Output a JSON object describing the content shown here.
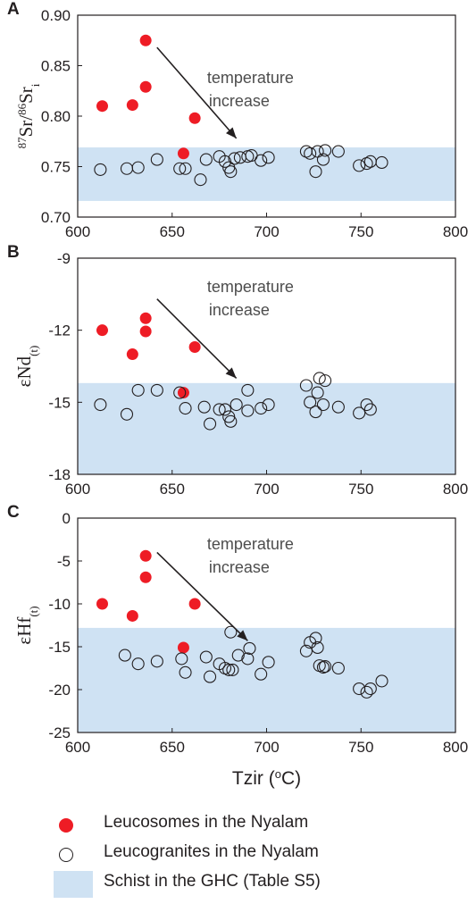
{
  "chart_data": [
    {
      "type": "scatter",
      "panel": "A",
      "ylabel_parts": [
        "87",
        "Sr/",
        "86",
        "Sr",
        "i"
      ],
      "xlim": [
        600,
        800
      ],
      "ylim": [
        0.7,
        0.9
      ],
      "xticks": [
        "600",
        "650",
        "700",
        "750",
        "800"
      ],
      "yticks": [
        "0.70",
        "0.75",
        "0.80",
        "0.85",
        "0.90"
      ],
      "ytick_values": [
        0.7,
        0.75,
        0.8,
        0.85,
        0.9
      ],
      "band": [
        0.716,
        0.769
      ],
      "annotation": [
        "temperature",
        "increase"
      ],
      "arrow": {
        "from": [
          642,
          0.868
        ],
        "to": [
          684,
          0.778
        ]
      },
      "series": [
        {
          "name": "Leucosomes in the Nyalam",
          "points": [
            [
              613,
              0.81
            ],
            [
              629,
              0.811
            ],
            [
              636,
              0.875
            ],
            [
              636,
              0.829
            ],
            [
              656,
              0.763
            ],
            [
              662,
              0.798
            ]
          ]
        },
        {
          "name": "Leucogranites in the Nyalam",
          "points": [
            [
              612,
              0.747
            ],
            [
              626,
              0.748
            ],
            [
              632,
              0.749
            ],
            [
              642,
              0.757
            ],
            [
              654,
              0.748
            ],
            [
              657,
              0.748
            ],
            [
              665,
              0.737
            ],
            [
              668,
              0.757
            ],
            [
              675,
              0.76
            ],
            [
              678,
              0.755
            ],
            [
              680,
              0.749
            ],
            [
              681,
              0.745
            ],
            [
              683,
              0.758
            ],
            [
              686,
              0.759
            ],
            [
              690,
              0.76
            ],
            [
              692,
              0.761
            ],
            [
              697,
              0.756
            ],
            [
              701,
              0.759
            ],
            [
              721,
              0.765
            ],
            [
              723,
              0.763
            ],
            [
              726,
              0.745
            ],
            [
              727,
              0.765
            ],
            [
              730,
              0.757
            ],
            [
              731,
              0.766
            ],
            [
              738,
              0.765
            ],
            [
              749,
              0.751
            ],
            [
              753,
              0.753
            ],
            [
              755,
              0.755
            ],
            [
              761,
              0.754
            ]
          ]
        }
      ]
    },
    {
      "type": "scatter",
      "panel": "B",
      "ylabel_parts": [
        "εNd",
        "(t)"
      ],
      "xlim": [
        600,
        800
      ],
      "ylim": [
        -18,
        -9
      ],
      "xticks": [
        "600",
        "650",
        "700",
        "750",
        "800"
      ],
      "yticks": [
        "-18",
        "-15",
        "-12",
        "-9"
      ],
      "ytick_values": [
        -18,
        -15,
        -12,
        -9
      ],
      "band": [
        -18,
        -14.2
      ],
      "annotation": [
        "temperature",
        "increase"
      ],
      "arrow": {
        "from": [
          642,
          -10.7
        ],
        "to": [
          684,
          -14.0
        ]
      },
      "series": [
        {
          "name": "Leucosomes in the Nyalam",
          "points": [
            [
              613,
              -12.0
            ],
            [
              629,
              -13.0
            ],
            [
              636,
              -11.5
            ],
            [
              636,
              -12.05
            ],
            [
              656,
              -14.6
            ],
            [
              662,
              -12.7
            ]
          ]
        },
        {
          "name": "Leucogranites in the Nyalam",
          "points": [
            [
              612,
              -15.1
            ],
            [
              626,
              -15.5
            ],
            [
              632,
              -14.5
            ],
            [
              642,
              -14.5
            ],
            [
              654,
              -14.6
            ],
            [
              657,
              -15.25
            ],
            [
              667,
              -15.2
            ],
            [
              670,
              -15.9
            ],
            [
              675,
              -15.3
            ],
            [
              678,
              -15.3
            ],
            [
              680,
              -15.6
            ],
            [
              681,
              -15.8
            ],
            [
              684,
              -15.1
            ],
            [
              690,
              -14.5
            ],
            [
              690,
              -15.35
            ],
            [
              697,
              -15.25
            ],
            [
              701,
              -15.1
            ],
            [
              721,
              -14.3
            ],
            [
              723,
              -15.0
            ],
            [
              726,
              -15.4
            ],
            [
              727,
              -14.6
            ],
            [
              728,
              -14.0
            ],
            [
              730,
              -15.1
            ],
            [
              731,
              -14.1
            ],
            [
              738,
              -15.2
            ],
            [
              749,
              -15.45
            ],
            [
              753,
              -15.1
            ],
            [
              755,
              -15.3
            ]
          ]
        }
      ]
    },
    {
      "type": "scatter",
      "panel": "C",
      "ylabel_parts": [
        "εHf",
        "(t)"
      ],
      "xlabel_parts": [
        "Tzir (",
        "o",
        "C)"
      ],
      "xlim": [
        600,
        800
      ],
      "ylim": [
        -25,
        0
      ],
      "xticks": [
        "600",
        "650",
        "700",
        "750",
        "800"
      ],
      "yticks": [
        "-25",
        "-20",
        "-15",
        "-10",
        "-5",
        "0"
      ],
      "ytick_values": [
        -25,
        -20,
        -15,
        -10,
        -5,
        0
      ],
      "band": [
        -25,
        -12.8
      ],
      "annotation": [
        "temperature",
        "increase"
      ],
      "arrow": {
        "from": [
          642,
          -4.0
        ],
        "to": [
          690,
          -14.3
        ]
      },
      "series": [
        {
          "name": "Leucosomes in the Nyalam",
          "points": [
            [
              613,
              -10.0
            ],
            [
              629,
              -11.4
            ],
            [
              636,
              -4.4
            ],
            [
              636,
              -6.9
            ],
            [
              656,
              -15.1
            ],
            [
              662,
              -10.0
            ]
          ]
        },
        {
          "name": "Leucogranites in the Nyalam",
          "points": [
            [
              625,
              -16.0
            ],
            [
              632,
              -17.0
            ],
            [
              642,
              -16.7
            ],
            [
              655,
              -16.4
            ],
            [
              657,
              -18.0
            ],
            [
              668,
              -16.2
            ],
            [
              670,
              -18.5
            ],
            [
              675,
              -17.0
            ],
            [
              678,
              -17.5
            ],
            [
              680,
              -17.7
            ],
            [
              681,
              -13.3
            ],
            [
              682,
              -17.7
            ],
            [
              685,
              -16.0
            ],
            [
              690,
              -16.4
            ],
            [
              691,
              -15.2
            ],
            [
              697,
              -18.2
            ],
            [
              701,
              -16.8
            ],
            [
              721,
              -15.5
            ],
            [
              723,
              -14.5
            ],
            [
              726,
              -14.0
            ],
            [
              727,
              -15.1
            ],
            [
              728,
              -17.2
            ],
            [
              730,
              -17.4
            ],
            [
              731,
              -17.3
            ],
            [
              738,
              -17.5
            ],
            [
              749,
              -19.9
            ],
            [
              753,
              -20.3
            ],
            [
              755,
              -19.9
            ],
            [
              761,
              -19.0
            ]
          ]
        }
      ]
    }
  ],
  "legend": [
    {
      "label": "Leucosomes in the Nyalam",
      "color": "#ee1c25"
    },
    {
      "label": "Leucogranites in the Nyalam",
      "color": "#231f20"
    },
    {
      "label": "Schist in the GHC (Table S5)",
      "color": "#cfe2f3"
    }
  ],
  "colors": {
    "red": "#ee1c25",
    "band": "#cfe2f3",
    "axis": "#231f20",
    "arrow": "#231f20",
    "annotation": "#4d4d4d"
  }
}
